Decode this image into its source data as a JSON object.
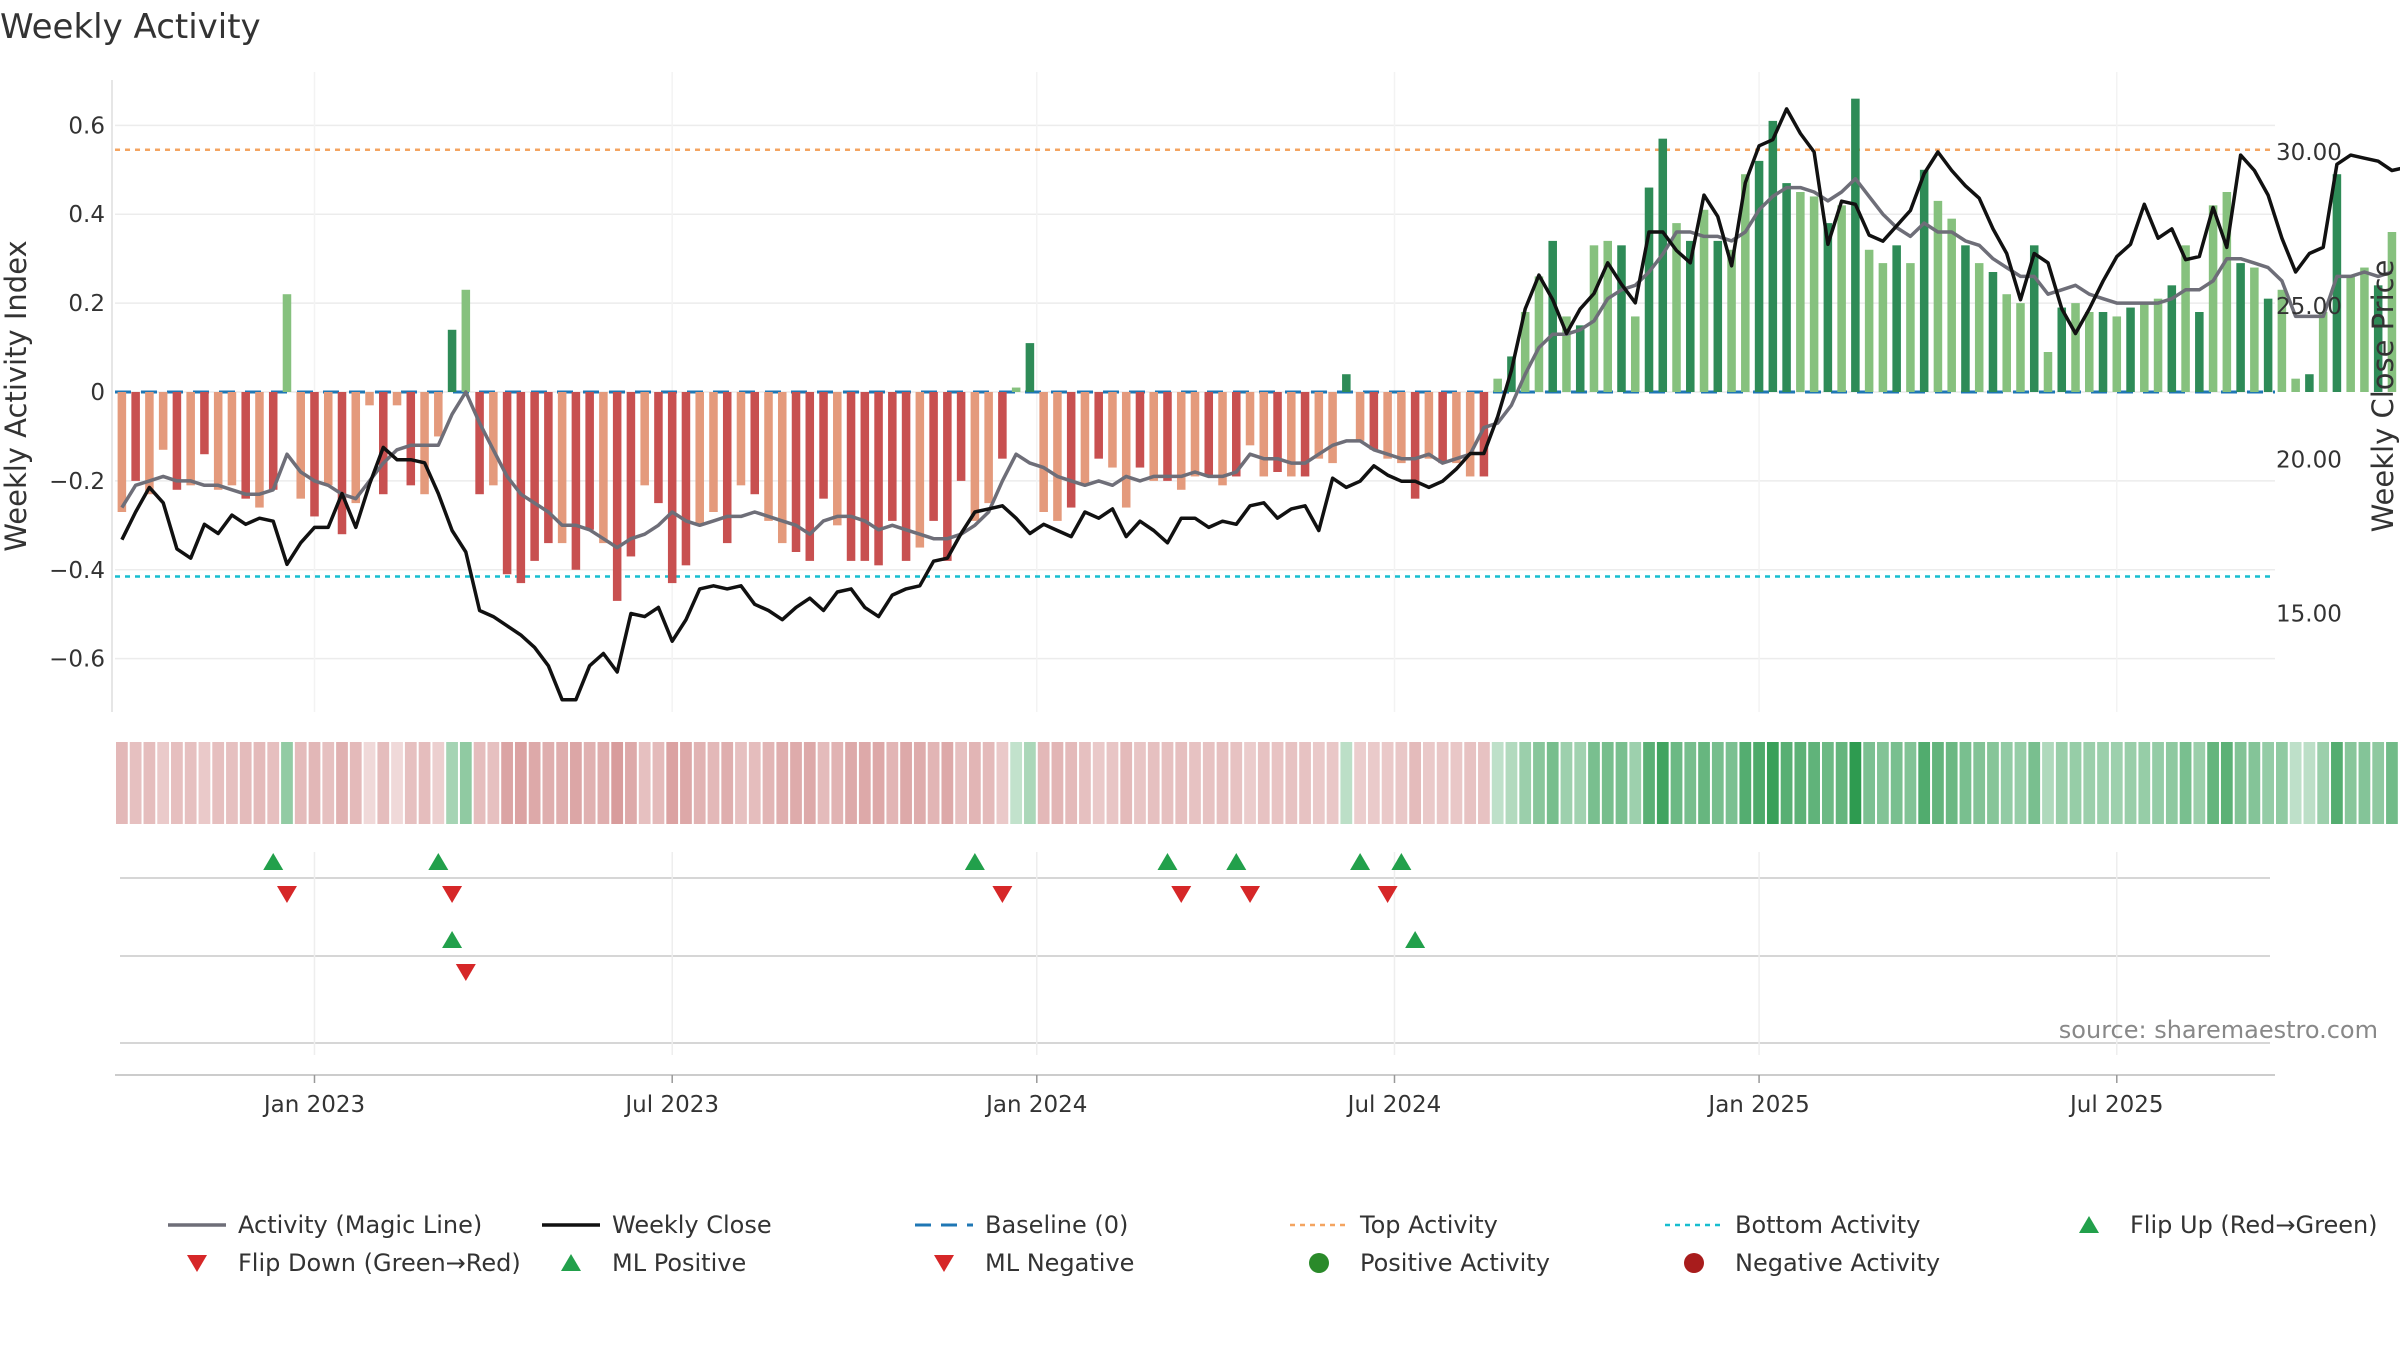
{
  "chart_data": {
    "type": "bar",
    "title": "Weekly Activity",
    "ylabel_left": "Weekly Activity Index",
    "ylabel_right": "Weekly Close Price",
    "source": "source: sharemaestro.com",
    "ylim_left": [
      -0.72,
      0.72
    ],
    "ylim_right": [
      11.8,
      32.6
    ],
    "yticks_left": [
      {
        "value": 0.6,
        "label": "0.6"
      },
      {
        "value": 0.4,
        "label": "0.4"
      },
      {
        "value": 0.2,
        "label": "0.2"
      },
      {
        "value": 0,
        "label": "0"
      },
      {
        "value": -0.2,
        "label": "−0.2"
      },
      {
        "value": -0.4,
        "label": "−0.4"
      },
      {
        "value": -0.6,
        "label": "−0.6"
      }
    ],
    "yticks_right": [
      {
        "value": 30,
        "label": "30.00"
      },
      {
        "value": 25,
        "label": "25.00"
      },
      {
        "value": 20,
        "label": "20.00"
      },
      {
        "value": 15,
        "label": "15.00"
      }
    ],
    "x_range": [
      0,
      157
    ],
    "xticks": [
      {
        "week": 14.5,
        "label": "Jan 2023"
      },
      {
        "week": 40.5,
        "label": "Jul 2023"
      },
      {
        "week": 67,
        "label": "Jan 2024"
      },
      {
        "week": 93,
        "label": "Jul 2024"
      },
      {
        "week": 119.5,
        "label": "Jan 2025"
      },
      {
        "week": 145.5,
        "label": "Jul 2025"
      }
    ],
    "top_activity": 0.545,
    "bottom_activity": -0.415,
    "baseline": 0,
    "activity": [
      -0.27,
      -0.2,
      -0.23,
      -0.13,
      -0.22,
      -0.21,
      -0.14,
      -0.22,
      -0.21,
      -0.24,
      -0.26,
      -0.22,
      0.22,
      -0.24,
      -0.28,
      -0.21,
      -0.32,
      -0.25,
      -0.03,
      -0.23,
      -0.03,
      -0.21,
      -0.23,
      -0.1,
      0.14,
      0.23,
      -0.23,
      -0.21,
      -0.41,
      -0.43,
      -0.38,
      -0.34,
      -0.34,
      -0.4,
      -0.31,
      -0.34,
      -0.47,
      -0.37,
      -0.21,
      -0.25,
      -0.43,
      -0.39,
      -0.3,
      -0.27,
      -0.34,
      -0.21,
      -0.23,
      -0.29,
      -0.34,
      -0.36,
      -0.38,
      -0.24,
      -0.3,
      -0.38,
      -0.38,
      -0.39,
      -0.29,
      -0.38,
      -0.35,
      -0.29,
      -0.38,
      -0.2,
      -0.29,
      -0.25,
      -0.15,
      0.01,
      0.11,
      -0.27,
      -0.29,
      -0.26,
      -0.21,
      -0.15,
      -0.17,
      -0.26,
      -0.17,
      -0.2,
      -0.2,
      -0.22,
      -0.19,
      -0.19,
      -0.21,
      -0.19,
      -0.12,
      -0.19,
      -0.18,
      -0.19,
      -0.19,
      -0.15,
      -0.16,
      0.04,
      -0.11,
      -0.13,
      -0.15,
      -0.16,
      -0.24,
      -0.15,
      -0.16,
      -0.16,
      -0.19,
      -0.19,
      0.03,
      0.08,
      0.18,
      0.26,
      0.34,
      0.17,
      0.15,
      0.33,
      0.34,
      0.33,
      0.17,
      0.46,
      0.57,
      0.38,
      0.34,
      0.41,
      0.34,
      0.32,
      0.49,
      0.52,
      0.61,
      0.47,
      0.45,
      0.44,
      0.38,
      0.42,
      0.66,
      0.32,
      0.29,
      0.33,
      0.29,
      0.5,
      0.43,
      0.39,
      0.33,
      0.29,
      0.27,
      0.22,
      0.2,
      0.33,
      0.09,
      0.19,
      0.2,
      0.18,
      0.18,
      0.17,
      0.19,
      0.2,
      0.21,
      0.24,
      0.33,
      0.18,
      0.42,
      0.45,
      0.29,
      0.28,
      0.21,
      0.23,
      0.03,
      0.04,
      0.18,
      0.49,
      0.26,
      0.28,
      0.24,
      0.36
    ],
    "magic_line": [
      -0.26,
      -0.21,
      -0.2,
      -0.19,
      -0.2,
      -0.2,
      -0.21,
      -0.21,
      -0.22,
      -0.23,
      -0.23,
      -0.22,
      -0.14,
      -0.18,
      -0.2,
      -0.21,
      -0.23,
      -0.24,
      -0.2,
      -0.16,
      -0.13,
      -0.12,
      -0.12,
      -0.12,
      -0.05,
      0,
      -0.07,
      -0.13,
      -0.19,
      -0.23,
      -0.25,
      -0.27,
      -0.3,
      -0.3,
      -0.31,
      -0.33,
      -0.35,
      -0.33,
      -0.32,
      -0.3,
      -0.27,
      -0.29,
      -0.3,
      -0.29,
      -0.28,
      -0.28,
      -0.27,
      -0.28,
      -0.29,
      -0.3,
      -0.32,
      -0.29,
      -0.28,
      -0.28,
      -0.29,
      -0.31,
      -0.3,
      -0.31,
      -0.32,
      -0.33,
      -0.33,
      -0.32,
      -0.3,
      -0.27,
      -0.2,
      -0.14,
      -0.16,
      -0.17,
      -0.19,
      -0.2,
      -0.21,
      -0.2,
      -0.21,
      -0.19,
      -0.2,
      -0.19,
      -0.19,
      -0.19,
      -0.18,
      -0.19,
      -0.19,
      -0.18,
      -0.14,
      -0.15,
      -0.15,
      -0.16,
      -0.16,
      -0.14,
      -0.12,
      -0.11,
      -0.11,
      -0.13,
      -0.14,
      -0.15,
      -0.15,
      -0.14,
      -0.16,
      -0.15,
      -0.14,
      -0.08,
      -0.07,
      -0.03,
      0.04,
      0.1,
      0.13,
      0.13,
      0.14,
      0.16,
      0.21,
      0.23,
      0.24,
      0.27,
      0.31,
      0.36,
      0.36,
      0.35,
      0.35,
      0.34,
      0.36,
      0.41,
      0.44,
      0.46,
      0.46,
      0.45,
      0.43,
      0.45,
      0.48,
      0.44,
      0.4,
      0.37,
      0.35,
      0.38,
      0.36,
      0.36,
      0.34,
      0.33,
      0.3,
      0.28,
      0.26,
      0.26,
      0.22,
      0.23,
      0.24,
      0.22,
      0.21,
      0.2,
      0.2,
      0.2,
      0.2,
      0.21,
      0.23,
      0.23,
      0.25,
      0.3,
      0.3,
      0.29,
      0.28,
      0.25,
      0.17,
      0.17,
      0.17,
      0.26,
      0.26,
      0.27,
      0.26,
      0.27
    ],
    "weekly_close": [
      17.4,
      18.3,
      19.1,
      18.6,
      17.1,
      16.8,
      17.9,
      17.6,
      18.2,
      17.9,
      18.1,
      18.0,
      16.6,
      17.3,
      17.8,
      17.8,
      18.9,
      17.8,
      19.2,
      20.4,
      20.0,
      20.0,
      19.9,
      18.9,
      17.7,
      17.0,
      15.1,
      14.9,
      14.6,
      14.3,
      13.9,
      13.3,
      12.2,
      12.2,
      13.3,
      13.7,
      13.1,
      15.0,
      14.9,
      15.2,
      14.1,
      14.8,
      15.8,
      15.9,
      15.8,
      15.9,
      15.3,
      15.1,
      14.8,
      15.2,
      15.5,
      15.1,
      15.7,
      15.8,
      15.2,
      14.9,
      15.6,
      15.8,
      15.9,
      16.7,
      16.8,
      17.6,
      18.3,
      18.4,
      18.5,
      18.1,
      17.6,
      17.9,
      17.7,
      17.5,
      18.3,
      18.1,
      18.4,
      17.5,
      18.0,
      17.7,
      17.3,
      18.1,
      18.1,
      17.8,
      18.0,
      17.9,
      18.5,
      18.6,
      18.1,
      18.4,
      18.5,
      17.7,
      19.4,
      19.1,
      19.3,
      19.8,
      19.5,
      19.3,
      19.3,
      19.1,
      19.3,
      19.7,
      20.2,
      20.2,
      21.4,
      22.9,
      24.9,
      26.0,
      25.2,
      24.1,
      24.9,
      25.4,
      26.4,
      25.7,
      25.1,
      27.4,
      27.4,
      26.8,
      26.4,
      28.6,
      27.9,
      26.3,
      29.0,
      30.2,
      30.4,
      31.4,
      30.6,
      30.0,
      27.0,
      28.4,
      28.3,
      27.3,
      27.1,
      27.6,
      28.1,
      29.3,
      30.0,
      29.4,
      28.9,
      28.5,
      27.5,
      26.7,
      25.2,
      26.7,
      26.4,
      24.9,
      24.1,
      24.9,
      25.8,
      26.6,
      27.0,
      28.3,
      27.2,
      27.5,
      26.5,
      26.6,
      28.2,
      26.9,
      29.9,
      29.4,
      28.6,
      27.2,
      26.1,
      26.7,
      26.9,
      29.6,
      29.9,
      29.8,
      29.7,
      29.4,
      29.5
    ],
    "signals": {
      "flip_up": [
        11.5,
        23.5,
        62.5,
        76.5,
        81.5,
        90.5,
        93.5
      ],
      "flip_down": [
        12.5,
        24.5,
        64.5,
        77.5,
        82.5,
        92.5
      ],
      "ml_positive": [
        24.5,
        94.5
      ],
      "ml_negative": [
        25.5
      ]
    },
    "colors": {
      "pos_strong": "#2e8b57",
      "pos_light": "#86c17e",
      "neg_strong": "#c85050",
      "neg_light": "#e49a7c",
      "magic_line": "#6e6e78",
      "weekly_close": "#111111",
      "baseline": "#1f77b4",
      "top_activity": "#f4a460",
      "bottom_activity": "#17becf",
      "flip_up": "#22a04b",
      "flip_down": "#d62728",
      "positive_dot": "#2a8a2a",
      "negative_dot": "#a81c1c"
    },
    "legend": [
      {
        "label": "Activity (Magic Line)",
        "marker": "line-gray"
      },
      {
        "label": "Weekly Close",
        "marker": "line-black"
      },
      {
        "label": "Baseline (0)",
        "marker": "dash-blue"
      },
      {
        "label": "Top Activity",
        "marker": "dot-orange"
      },
      {
        "label": "Bottom Activity",
        "marker": "dot-cyan"
      },
      {
        "label": "Flip Up (Red→Green)",
        "marker": "triangle-up-green"
      },
      {
        "label": "Flip Down (Green→Red)",
        "marker": "triangle-down-red"
      },
      {
        "label": "ML Positive",
        "marker": "triangle-up-green"
      },
      {
        "label": "ML Negative",
        "marker": "triangle-down-red"
      },
      {
        "label": "Positive Activity",
        "marker": "circle-green"
      },
      {
        "label": "Negative Activity",
        "marker": "circle-red"
      }
    ]
  }
}
